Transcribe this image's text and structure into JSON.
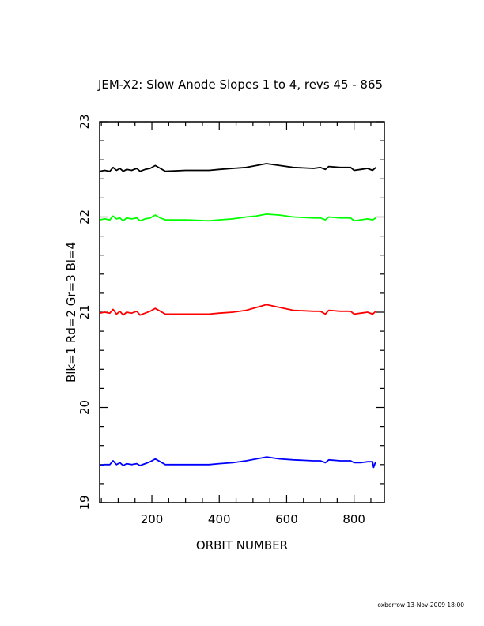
{
  "chart_data": {
    "type": "line",
    "title": "JEM-X2: Slow Anode Slopes 1 to 4, revs 45 - 865",
    "xlabel": "ORBIT NUMBER",
    "ylabel": "Blk=1 Rd=2 Gr=3 Bl=4",
    "xlim": [
      45,
      890
    ],
    "ylim": [
      19,
      23
    ],
    "xticks": [
      200,
      400,
      600,
      800
    ],
    "xtick_labels": [
      "200",
      "400",
      "600",
      "800"
    ],
    "yticks": [
      19,
      20,
      21,
      22,
      23
    ],
    "ytick_labels": [
      "19",
      "20",
      "21",
      "22",
      "23"
    ],
    "x_minor_step": 50,
    "y_minor_step": 0.2,
    "grid": false,
    "footer": "oxborrow 13-Nov-2009 18:00",
    "series": [
      {
        "color": "#000000",
        "x": [
          45,
          60,
          75,
          85,
          95,
          105,
          115,
          125,
          140,
          155,
          165,
          180,
          195,
          210,
          225,
          240,
          300,
          370,
          400,
          440,
          480,
          510,
          540,
          580,
          620,
          680,
          700,
          715,
          725,
          760,
          790,
          800,
          820,
          840,
          855,
          865
        ],
        "y": [
          22.48,
          22.49,
          22.48,
          22.52,
          22.49,
          22.51,
          22.48,
          22.5,
          22.49,
          22.51,
          22.48,
          22.5,
          22.51,
          22.54,
          22.51,
          22.48,
          22.49,
          22.49,
          22.5,
          22.51,
          22.52,
          22.54,
          22.56,
          22.54,
          22.52,
          22.51,
          22.52,
          22.5,
          22.53,
          22.52,
          22.52,
          22.49,
          22.5,
          22.51,
          22.49,
          22.52
        ]
      },
      {
        "color": "#00ff00",
        "x": [
          45,
          60,
          75,
          85,
          95,
          105,
          115,
          125,
          140,
          155,
          165,
          180,
          195,
          210,
          225,
          240,
          300,
          370,
          400,
          440,
          480,
          510,
          540,
          580,
          620,
          680,
          700,
          715,
          725,
          760,
          790,
          800,
          820,
          840,
          855,
          865
        ],
        "y": [
          21.97,
          21.98,
          21.97,
          22.01,
          21.98,
          21.99,
          21.96,
          21.99,
          21.98,
          21.99,
          21.96,
          21.98,
          21.99,
          22.02,
          21.99,
          21.97,
          21.97,
          21.96,
          21.97,
          21.98,
          22.0,
          22.01,
          22.03,
          22.02,
          22.0,
          21.99,
          21.99,
          21.97,
          22.0,
          21.99,
          21.99,
          21.96,
          21.97,
          21.98,
          21.97,
          21.99
        ]
      },
      {
        "color": "#ff0000",
        "x": [
          45,
          60,
          75,
          85,
          95,
          105,
          115,
          125,
          140,
          155,
          165,
          180,
          195,
          210,
          225,
          240,
          300,
          370,
          400,
          440,
          480,
          510,
          540,
          580,
          620,
          680,
          700,
          715,
          725,
          760,
          790,
          800,
          820,
          840,
          855,
          865
        ],
        "y": [
          20.99,
          21.0,
          20.99,
          21.03,
          20.98,
          21.01,
          20.97,
          21.0,
          20.99,
          21.01,
          20.97,
          20.99,
          21.01,
          21.04,
          21.01,
          20.98,
          20.98,
          20.98,
          20.99,
          21.0,
          21.02,
          21.05,
          21.08,
          21.05,
          21.02,
          21.01,
          21.01,
          20.98,
          21.02,
          21.01,
          21.01,
          20.98,
          20.99,
          21.0,
          20.98,
          21.01
        ]
      },
      {
        "color": "#0000ff",
        "x": [
          45,
          60,
          75,
          85,
          95,
          105,
          115,
          125,
          140,
          155,
          165,
          180,
          195,
          210,
          225,
          240,
          300,
          370,
          400,
          440,
          480,
          510,
          540,
          580,
          620,
          680,
          700,
          715,
          725,
          760,
          790,
          800,
          820,
          840,
          855,
          858,
          862,
          865
        ],
        "y": [
          19.39,
          19.4,
          19.4,
          19.44,
          19.4,
          19.42,
          19.39,
          19.41,
          19.4,
          19.41,
          19.39,
          19.41,
          19.43,
          19.46,
          19.43,
          19.4,
          19.4,
          19.4,
          19.41,
          19.42,
          19.44,
          19.46,
          19.48,
          19.46,
          19.45,
          19.44,
          19.44,
          19.42,
          19.45,
          19.44,
          19.44,
          19.42,
          19.42,
          19.43,
          19.43,
          19.37,
          19.41,
          19.43
        ]
      }
    ]
  }
}
